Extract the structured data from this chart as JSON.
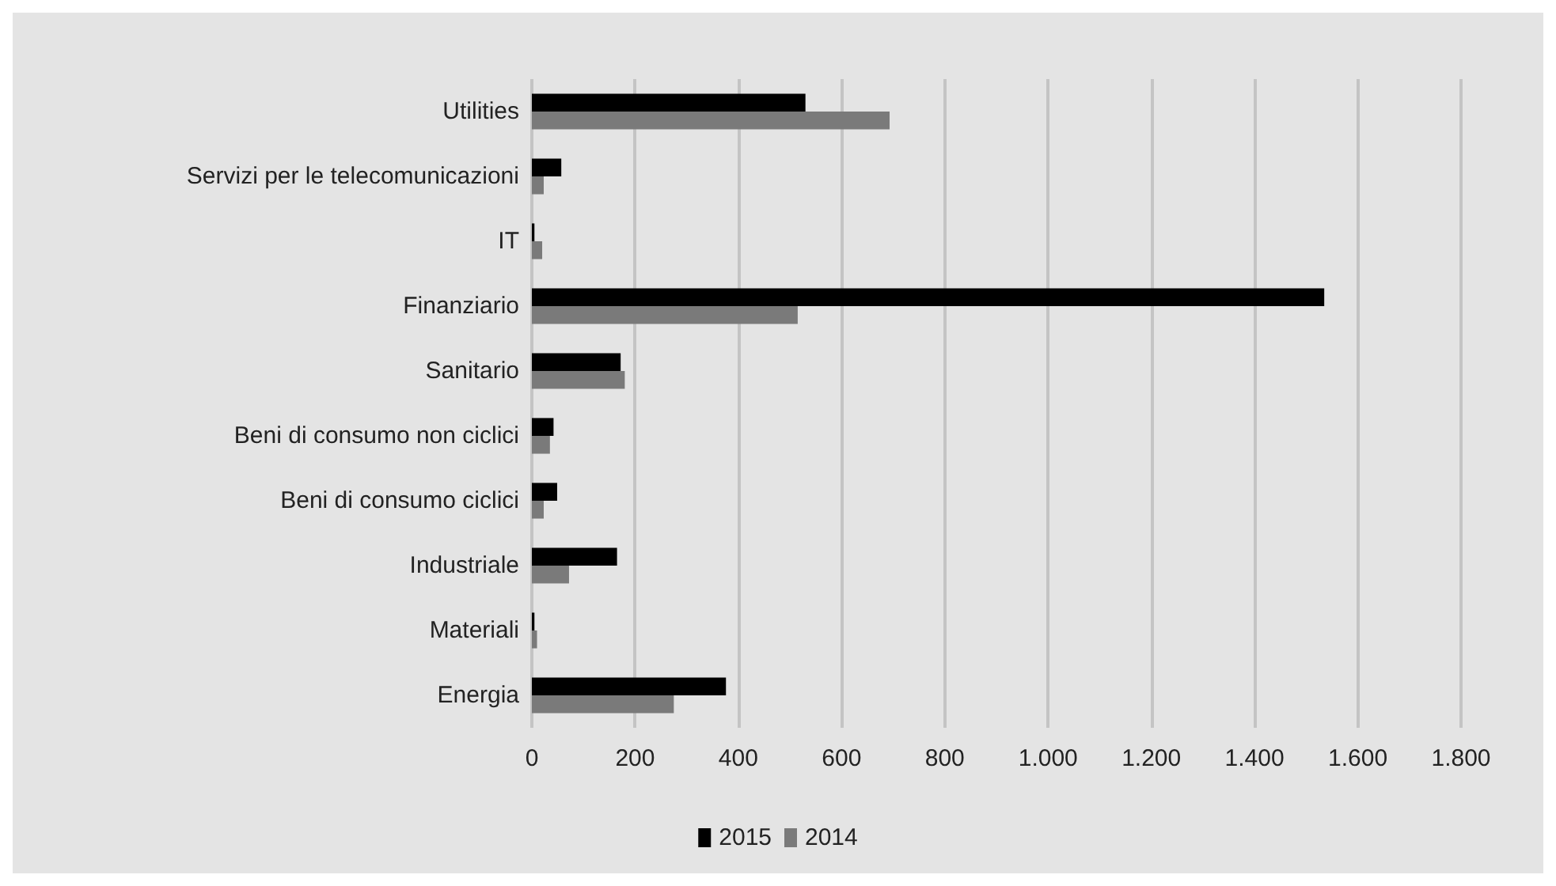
{
  "chart_data": {
    "type": "bar",
    "orientation": "horizontal",
    "categories": [
      "Utilities",
      "Servizi per le telecomunicazioni",
      "IT",
      "Finanziario",
      "Sanitario",
      "Beni di consumo non ciclici",
      "Beni di consumo ciclici",
      "Industriale",
      "Materiali",
      "Energia"
    ],
    "series": [
      {
        "name": "2015",
        "color": "#000000",
        "values": [
          530,
          57,
          5,
          1535,
          172,
          42,
          49,
          165,
          5,
          376
        ]
      },
      {
        "name": "2014",
        "color": "#7a7a7a",
        "values": [
          693,
          23,
          20,
          515,
          180,
          35,
          23,
          72,
          10,
          275
        ]
      }
    ],
    "xlim": [
      0,
      1800
    ],
    "xticks": [
      0,
      200,
      400,
      600,
      800,
      {
        "value": 1000,
        "label": "1.000"
      },
      {
        "value": 1200,
        "label": "1.200"
      },
      {
        "value": 1400,
        "label": "1.400"
      },
      {
        "value": 1600,
        "label": "1.600"
      },
      {
        "value": 1800,
        "label": "1.800"
      }
    ],
    "grid": "x",
    "legend": "bottom"
  }
}
